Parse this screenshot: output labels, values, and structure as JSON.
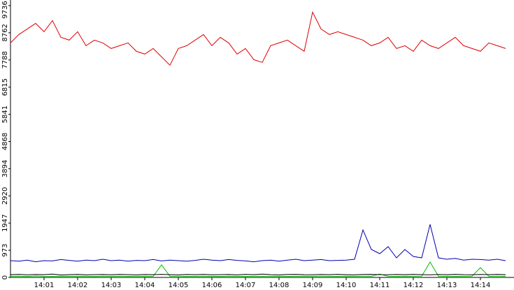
{
  "chart_data": {
    "type": "line",
    "x": [
      0,
      0.25,
      0.5,
      0.75,
      1,
      1.25,
      1.5,
      1.75,
      2,
      2.25,
      2.5,
      2.75,
      3,
      3.25,
      3.5,
      3.75,
      4,
      4.25,
      4.5,
      4.75,
      5,
      5.25,
      5.5,
      5.75,
      6,
      6.25,
      6.5,
      6.75,
      7,
      7.25,
      7.5,
      7.75,
      8,
      8.25,
      8.5,
      8.75,
      9,
      9.25,
      9.5,
      9.75,
      10,
      10.25,
      10.5,
      10.75,
      11,
      11.25,
      11.5,
      11.75,
      12,
      12.25,
      12.5,
      12.75,
      13,
      13.25,
      13.5,
      13.75,
      14,
      14.25,
      14.5,
      14.75
    ],
    "xlim": [
      0,
      15
    ],
    "xticks": [
      {
        "value": 1,
        "label": "14:01"
      },
      {
        "value": 2,
        "label": "14:02"
      },
      {
        "value": 3,
        "label": "14:03"
      },
      {
        "value": 4,
        "label": "14:04"
      },
      {
        "value": 5,
        "label": "14:05"
      },
      {
        "value": 6,
        "label": "14:06"
      },
      {
        "value": 7,
        "label": "14:07"
      },
      {
        "value": 8,
        "label": "14:08"
      },
      {
        "value": 9,
        "label": "14:09"
      },
      {
        "value": 10,
        "label": "14:10"
      },
      {
        "value": 11,
        "label": "14:11"
      },
      {
        "value": 12,
        "label": "14:12"
      },
      {
        "value": 13,
        "label": "14:13"
      },
      {
        "value": 14,
        "label": "14:14"
      }
    ],
    "ylim": [
      0,
      9736
    ],
    "yticks": [
      0,
      973,
      1947,
      2920,
      3894,
      4868,
      5841,
      6815,
      7788,
      8762,
      9736
    ],
    "series": [
      {
        "color": "#e00000",
        "values": [
          8400,
          8700,
          8900,
          9100,
          8800,
          9200,
          8600,
          8500,
          8800,
          8300,
          8500,
          8400,
          8200,
          8300,
          8400,
          8100,
          8000,
          8200,
          7900,
          7600,
          8200,
          8300,
          8500,
          8700,
          8300,
          8600,
          8400,
          8000,
          8200,
          7800,
          7700,
          8300,
          8400,
          8500,
          8300,
          8100,
          9500,
          8900,
          8700,
          8800,
          8700,
          8600,
          8500,
          8300,
          8400,
          8600,
          8200,
          8300,
          8100,
          8500,
          8300,
          8200,
          8400,
          8600,
          8300,
          8200,
          8100,
          8400,
          8300,
          8200
        ]
      },
      {
        "color": "#0000b0",
        "values": [
          600,
          580,
          620,
          560,
          600,
          590,
          640,
          610,
          580,
          620,
          600,
          650,
          600,
          620,
          580,
          610,
          600,
          640,
          590,
          620,
          600,
          580,
          610,
          650,
          620,
          600,
          640,
          610,
          590,
          560,
          600,
          620,
          580,
          620,
          650,
          600,
          620,
          640,
          600,
          610,
          620,
          650,
          1700,
          1000,
          850,
          1100,
          700,
          1000,
          750,
          700,
          1900,
          700,
          650,
          680,
          620,
          650,
          640,
          620,
          650,
          600
        ]
      },
      {
        "color": "#00c000",
        "values": [
          40,
          45,
          35,
          50,
          40,
          38,
          42,
          40,
          45,
          40,
          36,
          44,
          40,
          42,
          38,
          40,
          45,
          40,
          450,
          40,
          42,
          38,
          40,
          44,
          40,
          36,
          42,
          40,
          38,
          40,
          44,
          40,
          42,
          38,
          40,
          45,
          40,
          42,
          40,
          38,
          44,
          40,
          42,
          40,
          120,
          40,
          38,
          42,
          40,
          44,
          550,
          40,
          42,
          38,
          40,
          44,
          350,
          40,
          42,
          40
        ]
      },
      {
        "color": "#000000",
        "values": [
          100,
          110,
          95,
          105,
          100,
          120,
          90,
          100,
          110,
          95,
          100,
          105,
          98,
          110,
          100,
          95,
          105,
          100,
          110,
          100,
          95,
          105,
          100,
          110,
          98,
          100,
          105,
          95,
          110,
          100,
          120,
          100,
          95,
          105,
          110,
          100,
          98,
          105,
          100,
          110,
          100,
          95,
          105,
          110,
          100,
          98,
          105,
          100,
          110,
          100,
          95,
          105,
          100,
          110,
          100,
          98,
          105,
          100,
          110,
          100
        ]
      }
    ]
  }
}
